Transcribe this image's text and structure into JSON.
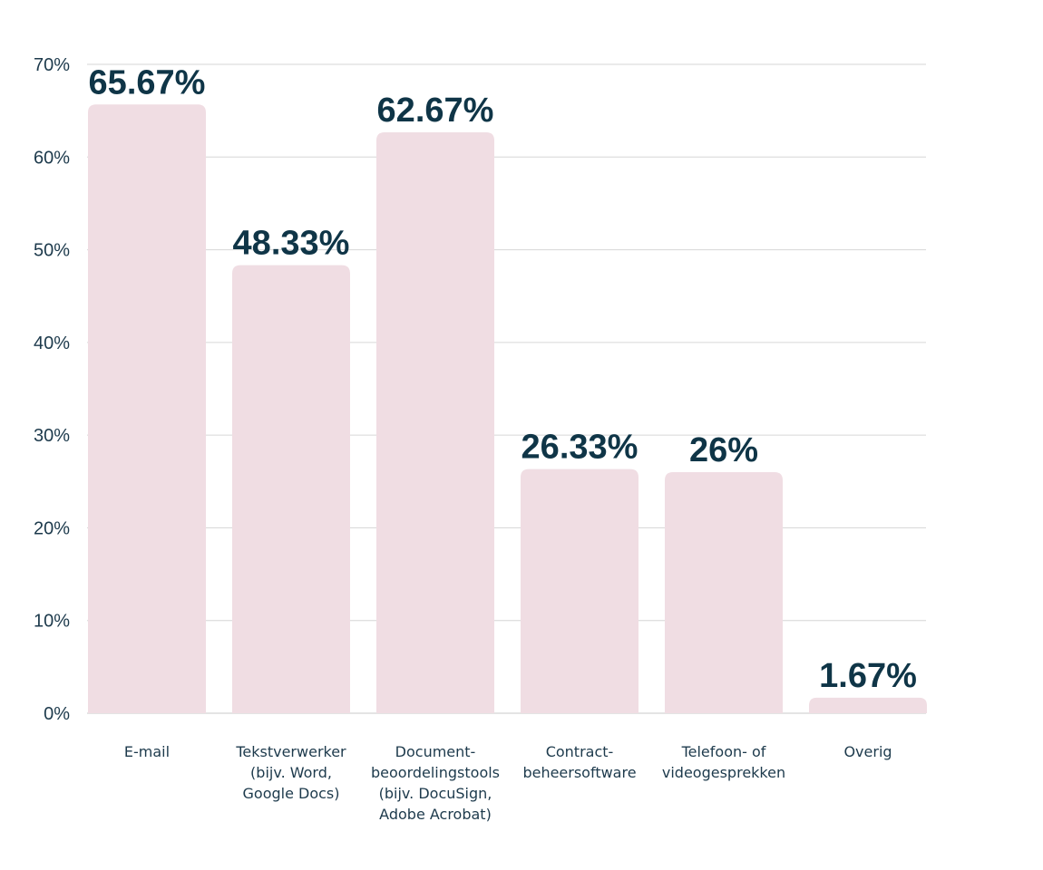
{
  "chart_data": {
    "type": "bar",
    "categories": [
      [
        "E-mail"
      ],
      [
        "Tekstverwerker",
        "(bijv. Word,",
        "Google Docs)"
      ],
      [
        "Document-",
        "beoordelingstools",
        "(bijv. DocuSign,",
        "Adobe Acrobat)"
      ],
      [
        "Contract-",
        "beheersoftware"
      ],
      [
        "Telefoon- of",
        "videogesprekken"
      ],
      [
        "Overig"
      ]
    ],
    "values": [
      65.67,
      48.33,
      62.67,
      26.33,
      26,
      1.67
    ],
    "value_labels": [
      "65.67%",
      "48.33%",
      "62.67%",
      "26.33%",
      "26%",
      "1.67%"
    ],
    "yticks": [
      0,
      10,
      20,
      30,
      40,
      50,
      60,
      70
    ],
    "ytick_labels": [
      "0%",
      "10%",
      "20%",
      "30%",
      "40%",
      "50%",
      "60%",
      "70%"
    ],
    "ylim": [
      0,
      70
    ],
    "grid": true,
    "legend": "none",
    "bar_color": "#f0dde3",
    "label_color": "#0f3547",
    "axis_text_color": "#1d3a4c"
  }
}
